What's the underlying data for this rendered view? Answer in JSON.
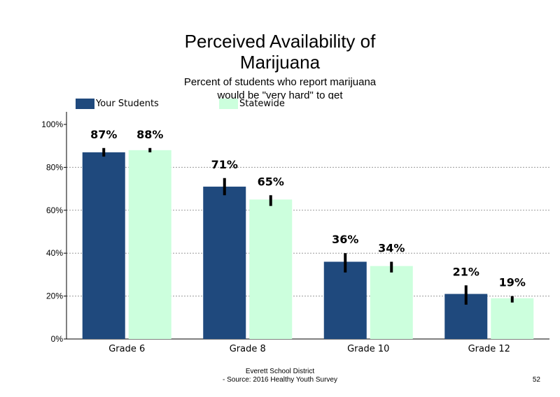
{
  "chart_data": {
    "type": "bar",
    "title_line1": "Perceived Availability of",
    "title_line2": "Marijuana",
    "subtitle_line1": "Percent of students  who report marijuana",
    "subtitle_line2": "would be \"very hard\" to get",
    "categories": [
      "Grade 6",
      "Grade 8",
      "Grade 10",
      "Grade 12"
    ],
    "series": [
      {
        "name": "Your Students",
        "color": "#1f497d",
        "values": [
          87,
          71,
          36,
          21
        ],
        "labels": [
          "87%",
          "71%",
          "36%",
          "21%"
        ],
        "error": [
          [
            85,
            89
          ],
          [
            67,
            75
          ],
          [
            31,
            40
          ],
          [
            16,
            25
          ]
        ]
      },
      {
        "name": "Statewide",
        "color": "#ccffdd",
        "values": [
          88,
          65,
          34,
          19
        ],
        "labels": [
          "88%",
          "65%",
          "34%",
          "19%"
        ],
        "error": [
          [
            87,
            89
          ],
          [
            62,
            67
          ],
          [
            31,
            36
          ],
          [
            17,
            20
          ]
        ]
      }
    ],
    "ylim": [
      0,
      100
    ],
    "yticks": [
      0,
      20,
      40,
      60,
      80,
      100
    ],
    "ytick_labels": [
      "0%",
      "20%",
      "40%",
      "60%",
      "80%",
      "100%"
    ],
    "grid": true,
    "legend": "top-left"
  },
  "footer": {
    "line1": "Everett School District",
    "line2": "- Source: 2016 Healthy  Youth Survey"
  },
  "page_number": "52"
}
